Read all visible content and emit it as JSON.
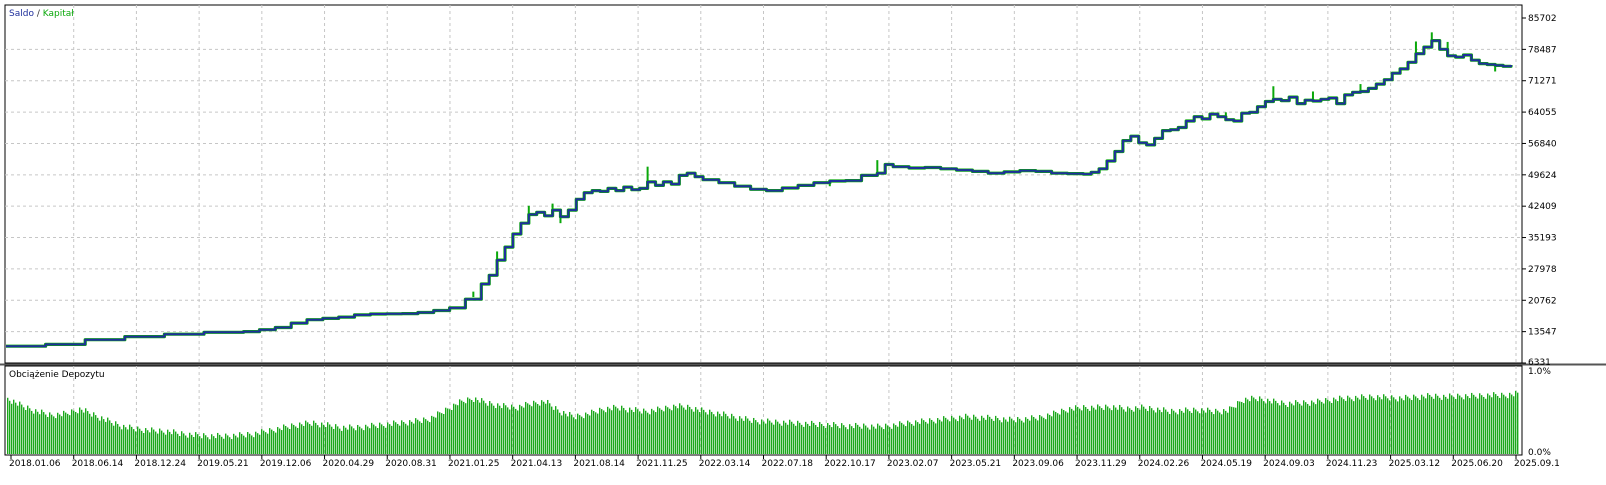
{
  "chart_data": [
    {
      "type": "line",
      "legend": {
        "items": [
          {
            "label": "Saldo",
            "color": "#1f2f9c"
          },
          {
            "label": "Kapitał",
            "color": "#0aa80a"
          }
        ],
        "separator": " / ",
        "placement": "top-left"
      },
      "y_ticks": [
        "85702",
        "78487",
        "71271",
        "64055",
        "56840",
        "49624",
        "42409",
        "35193",
        "27978",
        "20762",
        "13547",
        "6331"
      ],
      "ylim": [
        6331,
        85702
      ],
      "grid": true,
      "x_ticks": [
        "2018.01.06",
        "2018.06.14",
        "2018.12.24",
        "2019.05.21",
        "2019.12.06",
        "2020.04.29",
        "2020.08.31",
        "2021.01.25",
        "2021.04.13",
        "2021.08.14",
        "2021.11.25",
        "2022.03.14",
        "2022.07.18",
        "2022.10.17",
        "2023.02.07",
        "2023.05.21",
        "2023.09.06",
        "2023.11.29",
        "2024.02.26",
        "2024.05.19",
        "2024.09.03",
        "2024.11.23",
        "2025.03.12",
        "2025.06.20",
        "2025.09.1"
      ],
      "series": [
        {
          "name": "Saldo",
          "color": "#1f2f9c",
          "points": [
            [
              0,
              10200
            ],
            [
              5,
              10600
            ],
            [
              10,
              11700
            ],
            [
              15,
              12400
            ],
            [
              20,
              12950
            ],
            [
              25,
              13400
            ],
            [
              30,
              13550
            ],
            [
              32,
              14000
            ],
            [
              34,
              14500
            ],
            [
              36,
              15500
            ],
            [
              38,
              16300
            ],
            [
              40,
              16600
            ],
            [
              42,
              16900
            ],
            [
              44,
              17400
            ],
            [
              46,
              17600
            ],
            [
              48,
              17650
            ],
            [
              50,
              17700
            ],
            [
              52,
              17950
            ],
            [
              54,
              18400
            ],
            [
              56,
              19000
            ],
            [
              58,
              21000
            ],
            [
              60,
              24500
            ],
            [
              61,
              26500
            ],
            [
              62,
              30000
            ],
            [
              63,
              33000
            ],
            [
              64,
              36000
            ],
            [
              65,
              38500
            ],
            [
              66,
              40500
            ],
            [
              67,
              41000
            ],
            [
              68,
              40200
            ],
            [
              69,
              41500
            ],
            [
              70,
              40000
            ],
            [
              71,
              41500
            ],
            [
              72,
              44000
            ],
            [
              73,
              45500
            ],
            [
              74,
              46000
            ],
            [
              75,
              45800
            ],
            [
              76,
              46500
            ],
            [
              77,
              46000
            ],
            [
              78,
              46800
            ],
            [
              79,
              46200
            ],
            [
              80,
              46500
            ],
            [
              81,
              48000
            ],
            [
              82,
              47200
            ],
            [
              83,
              48000
            ],
            [
              84,
              47500
            ],
            [
              85,
              49500
            ],
            [
              86,
              50000
            ],
            [
              87,
              49200
            ],
            [
              88,
              48500
            ],
            [
              90,
              47800
            ],
            [
              92,
              47000
            ],
            [
              94,
              46300
            ],
            [
              96,
              46000
            ],
            [
              98,
              46600
            ],
            [
              100,
              47200
            ],
            [
              102,
              47800
            ],
            [
              104,
              48200
            ],
            [
              106,
              48300
            ],
            [
              108,
              49500
            ],
            [
              110,
              50000
            ],
            [
              111,
              52000
            ],
            [
              112,
              51500
            ],
            [
              114,
              51200
            ],
            [
              116,
              51300
            ],
            [
              118,
              51000
            ],
            [
              120,
              50700
            ],
            [
              122,
              50400
            ],
            [
              124,
              50000
            ],
            [
              126,
              50300
            ],
            [
              128,
              50600
            ],
            [
              130,
              50400
            ],
            [
              132,
              50000
            ],
            [
              134,
              49900
            ],
            [
              136,
              49800
            ],
            [
              137,
              50200
            ],
            [
              138,
              51000
            ],
            [
              139,
              52800
            ],
            [
              140,
              55000
            ],
            [
              141,
              57500
            ],
            [
              142,
              58500
            ],
            [
              143,
              57000
            ],
            [
              144,
              56500
            ],
            [
              145,
              58000
            ],
            [
              146,
              59800
            ],
            [
              147,
              60000
            ],
            [
              148,
              60500
            ],
            [
              149,
              62000
            ],
            [
              150,
              63000
            ],
            [
              151,
              62500
            ],
            [
              152,
              63600
            ],
            [
              153,
              63000
            ],
            [
              154,
              62300
            ],
            [
              155,
              62000
            ],
            [
              156,
              63800
            ],
            [
              157,
              64000
            ],
            [
              158,
              65300
            ],
            [
              159,
              66500
            ],
            [
              160,
              67000
            ],
            [
              161,
              66700
            ],
            [
              162,
              67500
            ],
            [
              163,
              66000
            ],
            [
              164,
              66800
            ],
            [
              165,
              66600
            ],
            [
              166,
              67000
            ],
            [
              167,
              67300
            ],
            [
              168,
              66000
            ],
            [
              169,
              68000
            ],
            [
              170,
              68600
            ],
            [
              171,
              68800
            ],
            [
              172,
              69500
            ],
            [
              173,
              70500
            ],
            [
              174,
              71500
            ],
            [
              175,
              73000
            ],
            [
              176,
              74000
            ],
            [
              177,
              75500
            ],
            [
              178,
              77500
            ],
            [
              179,
              79000
            ],
            [
              180,
              80500
            ],
            [
              181,
              78500
            ],
            [
              182,
              77000
            ],
            [
              183,
              76700
            ],
            [
              184,
              77200
            ],
            [
              185,
              76000
            ],
            [
              186,
              75200
            ],
            [
              187,
              75000
            ],
            [
              188,
              74800
            ],
            [
              189,
              74600
            ],
            [
              190,
              74900
            ]
          ],
          "x_max": 190
        },
        {
          "name": "Kapitał",
          "color": "#0aa80a",
          "spikes": [
            [
              59,
              21500
            ],
            [
              62,
              32000
            ],
            [
              66,
              42500
            ],
            [
              69,
              43000
            ],
            [
              70,
              38500
            ],
            [
              81,
              51500
            ],
            [
              97,
              46000
            ],
            [
              104,
              47000
            ],
            [
              110,
              53000
            ],
            [
              154,
              64000
            ],
            [
              160,
              70000
            ],
            [
              165,
              68800
            ],
            [
              171,
              70500
            ],
            [
              178,
              80300
            ],
            [
              180,
              82400
            ],
            [
              182,
              80200
            ],
            [
              188,
              73400
            ]
          ]
        }
      ]
    },
    {
      "type": "bar",
      "title": "Obciążenie Depozytu",
      "y_ticks": [
        "1.0%",
        "0.0%"
      ],
      "ylim": [
        0,
        1.0
      ],
      "color": "#1aa81a",
      "values": [
        0.72,
        0.62,
        0.55,
        0.5,
        0.52,
        0.58,
        0.5,
        0.42,
        0.35,
        0.32,
        0.3,
        0.29,
        0.26,
        0.24,
        0.23,
        0.23,
        0.24,
        0.26,
        0.3,
        0.34,
        0.38,
        0.4,
        0.37,
        0.34,
        0.34,
        0.36,
        0.38,
        0.4,
        0.42,
        0.45,
        0.55,
        0.66,
        0.72,
        0.66,
        0.62,
        0.6,
        0.65,
        0.68,
        0.55,
        0.48,
        0.52,
        0.58,
        0.6,
        0.57,
        0.55,
        0.58,
        0.62,
        0.6,
        0.55,
        0.52,
        0.48,
        0.44,
        0.42,
        0.41,
        0.4,
        0.39,
        0.38,
        0.37,
        0.36,
        0.36,
        0.35,
        0.37,
        0.4,
        0.42,
        0.44,
        0.46,
        0.48,
        0.47,
        0.46,
        0.44,
        0.45,
        0.47,
        0.52,
        0.58,
        0.6,
        0.6,
        0.61,
        0.58,
        0.6,
        0.58,
        0.55,
        0.56,
        0.57,
        0.55,
        0.56,
        0.7,
        0.72,
        0.68,
        0.65,
        0.66,
        0.67,
        0.7,
        0.72,
        0.73,
        0.74,
        0.73,
        0.72,
        0.74,
        0.75,
        0.74,
        0.75,
        0.75,
        0.76,
        0.76,
        0.78
      ],
      "xlim": [
        0,
        104
      ]
    }
  ]
}
